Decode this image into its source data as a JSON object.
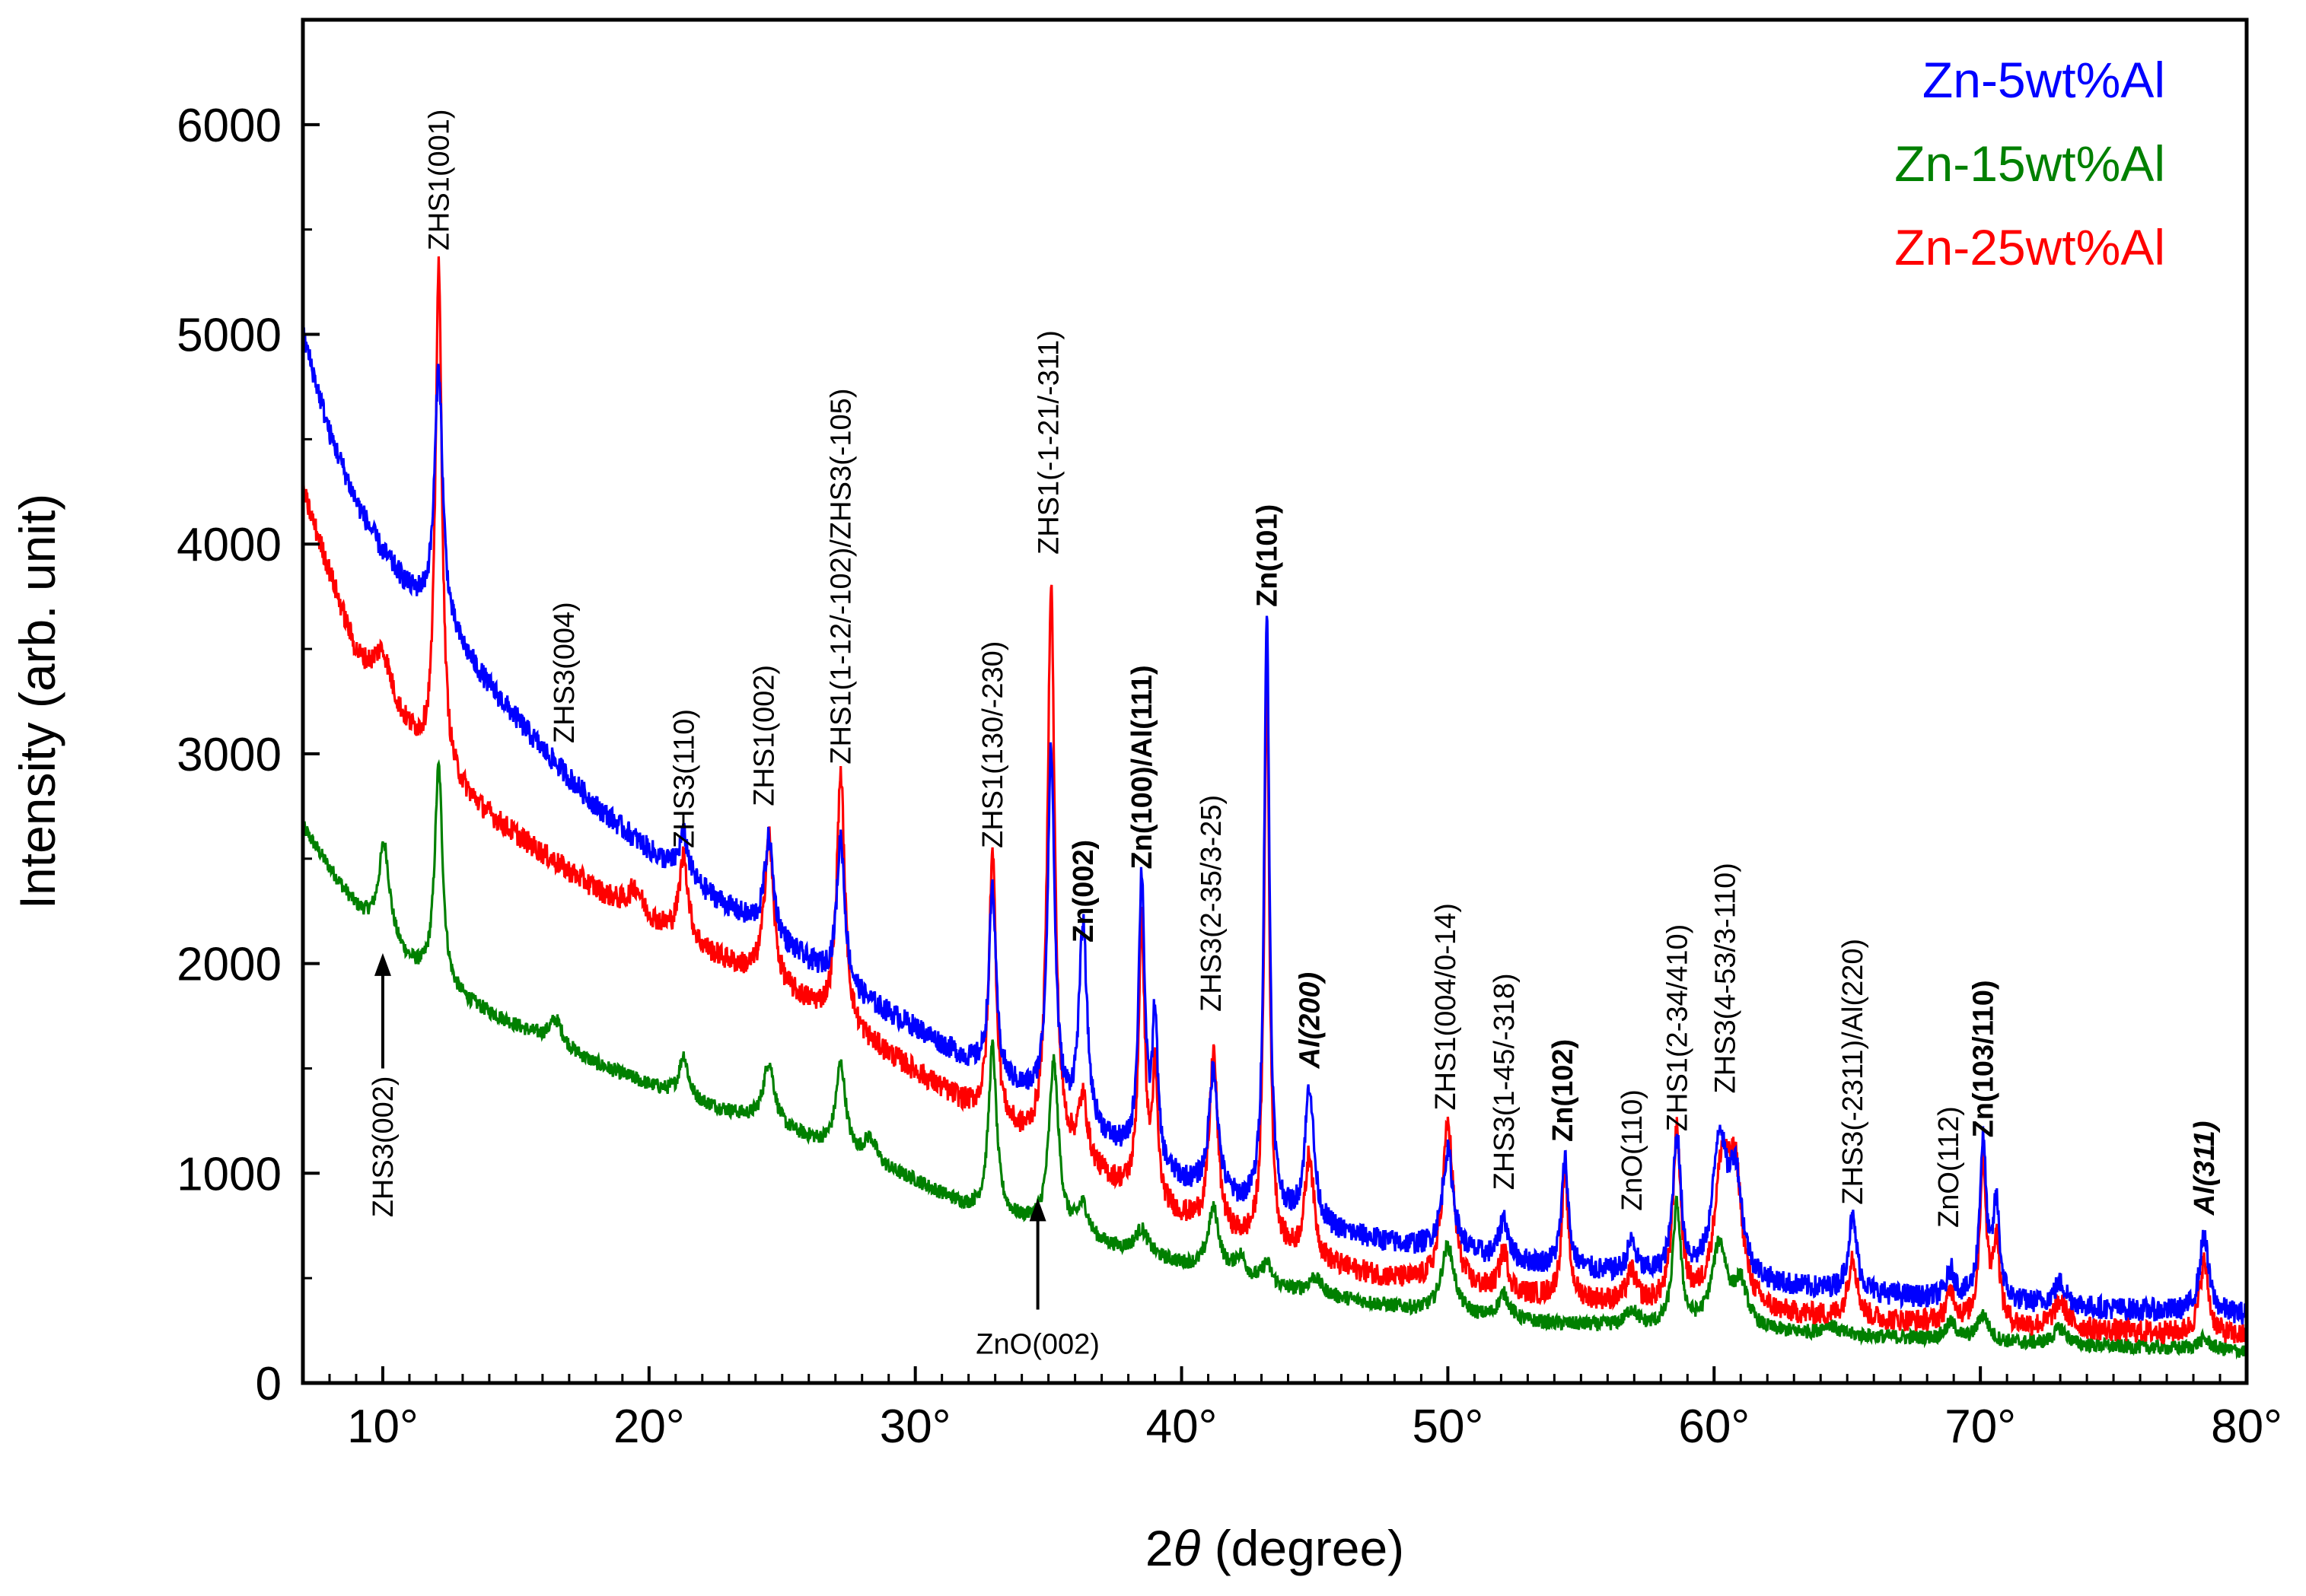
{
  "chart_data": {
    "type": "line",
    "title": "",
    "xlabel": "2θ (degree)",
    "ylabel": "Intensity (arb. unit)",
    "xlim": [
      7,
      80
    ],
    "ylim": [
      0,
      6500
    ],
    "x_ticks": [
      {
        "value": 10,
        "label": "10°"
      },
      {
        "value": 20,
        "label": "20°"
      },
      {
        "value": 30,
        "label": "30°"
      },
      {
        "value": 40,
        "label": "40°"
      },
      {
        "value": 50,
        "label": "50°"
      },
      {
        "value": 60,
        "label": "60°"
      },
      {
        "value": 70,
        "label": "70°"
      },
      {
        "value": 80,
        "label": "80°"
      }
    ],
    "y_ticks": [
      {
        "value": 0,
        "label": "0"
      },
      {
        "value": 1000,
        "label": "1000"
      },
      {
        "value": 2000,
        "label": "2000"
      },
      {
        "value": 3000,
        "label": "3000"
      },
      {
        "value": 4000,
        "label": "4000"
      },
      {
        "value": 5000,
        "label": "5000"
      },
      {
        "value": 6000,
        "label": "6000"
      }
    ],
    "legend": {
      "position": "top-right",
      "entries": [
        {
          "name": "Zn-5wt%Al",
          "color": "#0000ff"
        },
        {
          "name": "Zn-15wt%Al",
          "color": "#008000"
        },
        {
          "name": "Zn-25wt%Al",
          "color": "#ff0000"
        }
      ]
    },
    "series": [
      {
        "name": "Zn-15wt%Al",
        "color": "#008000",
        "baseline": [
          [
            7,
            2650
          ],
          [
            8,
            2450
          ],
          [
            9,
            2260
          ],
          [
            10,
            2120
          ],
          [
            11,
            1990
          ],
          [
            12,
            1890
          ],
          [
            14,
            1760
          ],
          [
            16,
            1640
          ],
          [
            18,
            1520
          ],
          [
            20,
            1420
          ],
          [
            22,
            1330
          ],
          [
            24,
            1250
          ],
          [
            26,
            1160
          ],
          [
            28,
            1050
          ],
          [
            30,
            960
          ],
          [
            32,
            830
          ],
          [
            34,
            760
          ],
          [
            36,
            690
          ],
          [
            38,
            620
          ],
          [
            40,
            560
          ],
          [
            42,
            500
          ],
          [
            44,
            440
          ],
          [
            46,
            400
          ],
          [
            48,
            360
          ],
          [
            50,
            320
          ],
          [
            52,
            300
          ],
          [
            54,
            280
          ],
          [
            56,
            270
          ],
          [
            58,
            260
          ],
          [
            60,
            250
          ],
          [
            62,
            240
          ],
          [
            64,
            230
          ],
          [
            66,
            220
          ],
          [
            68,
            210
          ],
          [
            70,
            195
          ],
          [
            72,
            185
          ],
          [
            74,
            175
          ],
          [
            76,
            170
          ],
          [
            78,
            160
          ],
          [
            80,
            150
          ]
        ],
        "peaks": [
          [
            10.05,
            450,
            0.25
          ],
          [
            12.1,
            1050,
            0.18
          ],
          [
            16.5,
            120,
            0.3
          ],
          [
            21.3,
            200,
            0.2
          ],
          [
            24.5,
            300,
            0.25
          ],
          [
            27.2,
            420,
            0.22
          ],
          [
            28.3,
            120,
            0.3
          ],
          [
            32.9,
            800,
            0.18
          ],
          [
            35.2,
            800,
            0.22
          ],
          [
            36.3,
            150,
            0.25
          ],
          [
            38.5,
            120,
            0.3
          ],
          [
            41.2,
            300,
            0.25
          ],
          [
            42.2,
            100,
            0.25
          ],
          [
            43.2,
            100,
            0.2
          ],
          [
            45.0,
            80,
            0.3
          ],
          [
            50.0,
            330,
            0.3
          ],
          [
            52.1,
            120,
            0.25
          ],
          [
            56.9,
            80,
            0.25
          ],
          [
            58.6,
            580,
            0.18
          ],
          [
            60.2,
            400,
            0.35
          ],
          [
            61.0,
            200,
            0.3
          ],
          [
            64.3,
            50,
            0.3
          ],
          [
            68.9,
            80,
            0.25
          ],
          [
            70.1,
            130,
            0.25
          ],
          [
            73.0,
            80,
            0.3
          ],
          [
            78.4,
            50,
            0.3
          ]
        ],
        "noise": 35
      },
      {
        "name": "Zn-25wt%Al",
        "color": "#ff0000",
        "baseline": [
          [
            7,
            4250
          ],
          [
            8,
            3860
          ],
          [
            9,
            3460
          ],
          [
            10,
            3250
          ],
          [
            11,
            3080
          ],
          [
            12,
            2920
          ],
          [
            14,
            2700
          ],
          [
            16,
            2520
          ],
          [
            18,
            2350
          ],
          [
            20,
            2200
          ],
          [
            22,
            2060
          ],
          [
            24,
            1940
          ],
          [
            26,
            1800
          ],
          [
            28,
            1640
          ],
          [
            30,
            1480
          ],
          [
            32,
            1310
          ],
          [
            34,
            1160
          ],
          [
            36,
            1050
          ],
          [
            38,
            900
          ],
          [
            40,
            780
          ],
          [
            42,
            680
          ],
          [
            44,
            600
          ],
          [
            46,
            540
          ],
          [
            48,
            490
          ],
          [
            50,
            450
          ],
          [
            52,
            420
          ],
          [
            54,
            400
          ],
          [
            56,
            380
          ],
          [
            58,
            360
          ],
          [
            60,
            340
          ],
          [
            62,
            320
          ],
          [
            64,
            310
          ],
          [
            66,
            295
          ],
          [
            68,
            285
          ],
          [
            70,
            270
          ],
          [
            72,
            260
          ],
          [
            74,
            250
          ],
          [
            76,
            240
          ],
          [
            78,
            230
          ],
          [
            80,
            220
          ]
        ],
        "peaks": [
          [
            10.0,
            230,
            0.4
          ],
          [
            12.1,
            2400,
            0.15
          ],
          [
            19.5,
            120,
            0.3
          ],
          [
            21.3,
            400,
            0.2
          ],
          [
            24.5,
            700,
            0.2
          ],
          [
            27.2,
            1200,
            0.18
          ],
          [
            32.9,
            1300,
            0.15
          ],
          [
            35.1,
            2700,
            0.16
          ],
          [
            36.3,
            300,
            0.2
          ],
          [
            38.5,
            1300,
            0.14
          ],
          [
            39.0,
            600,
            0.12
          ],
          [
            41.2,
            850,
            0.18
          ],
          [
            43.2,
            2700,
            0.12
          ],
          [
            44.8,
            500,
            0.2
          ],
          [
            50.0,
            780,
            0.25
          ],
          [
            52.1,
            200,
            0.2
          ],
          [
            54.4,
            600,
            0.15
          ],
          [
            56.9,
            150,
            0.2
          ],
          [
            58.6,
            820,
            0.18
          ],
          [
            60.3,
            640,
            0.35
          ],
          [
            60.8,
            560,
            0.3
          ],
          [
            65.2,
            300,
            0.2
          ],
          [
            68.9,
            150,
            0.2
          ],
          [
            70.1,
            780,
            0.15
          ],
          [
            70.6,
            400,
            0.15
          ],
          [
            73.0,
            130,
            0.3
          ],
          [
            78.4,
            350,
            0.2
          ]
        ],
        "noise": 55
      },
      {
        "name": "Zn-5wt%Al",
        "color": "#0000ff",
        "baseline": [
          [
            7,
            5000
          ],
          [
            8,
            4530
          ],
          [
            9,
            4200
          ],
          [
            10,
            3960
          ],
          [
            11,
            3780
          ],
          [
            12,
            3660
          ],
          [
            14,
            3320
          ],
          [
            16,
            3020
          ],
          [
            18,
            2750
          ],
          [
            20,
            2540
          ],
          [
            22,
            2350
          ],
          [
            24,
            2180
          ],
          [
            26,
            2000
          ],
          [
            28,
            1830
          ],
          [
            30,
            1690
          ],
          [
            32,
            1530
          ],
          [
            34,
            1380
          ],
          [
            36,
            1230
          ],
          [
            38,
            1080
          ],
          [
            40,
            950
          ],
          [
            42,
            850
          ],
          [
            44,
            770
          ],
          [
            46,
            710
          ],
          [
            48,
            660
          ],
          [
            50,
            620
          ],
          [
            52,
            580
          ],
          [
            54,
            550
          ],
          [
            56,
            520
          ],
          [
            58,
            500
          ],
          [
            60,
            480
          ],
          [
            62,
            460
          ],
          [
            64,
            440
          ],
          [
            66,
            420
          ],
          [
            68,
            400
          ],
          [
            70,
            385
          ],
          [
            72,
            370
          ],
          [
            74,
            355
          ],
          [
            76,
            345
          ],
          [
            78,
            335
          ],
          [
            80,
            325
          ]
        ],
        "peaks": [
          [
            12.1,
            1200,
            0.18
          ],
          [
            21.3,
            200,
            0.2
          ],
          [
            24.5,
            460,
            0.2
          ],
          [
            27.2,
            700,
            0.18
          ],
          [
            32.9,
            900,
            0.15
          ],
          [
            35.1,
            1700,
            0.16
          ],
          [
            36.3,
            950,
            0.18
          ],
          [
            38.5,
            1350,
            0.14
          ],
          [
            39.0,
            700,
            0.12
          ],
          [
            41.2,
            600,
            0.2
          ],
          [
            43.2,
            2850,
            0.12
          ],
          [
            44.8,
            660,
            0.2
          ],
          [
            50.0,
            480,
            0.25
          ],
          [
            52.1,
            200,
            0.2
          ],
          [
            54.4,
            520,
            0.15
          ],
          [
            56.9,
            150,
            0.2
          ],
          [
            58.6,
            670,
            0.18
          ],
          [
            60.2,
            650,
            0.3
          ],
          [
            60.8,
            480,
            0.3
          ],
          [
            65.2,
            350,
            0.2
          ],
          [
            68.9,
            130,
            0.2
          ],
          [
            70.1,
            750,
            0.15
          ],
          [
            70.6,
            450,
            0.15
          ],
          [
            73.0,
            110,
            0.3
          ],
          [
            78.4,
            370,
            0.2
          ]
        ],
        "noise": 55
      }
    ],
    "peak_labels": [
      {
        "text": "ZHS1(001)",
        "x": 12.1,
        "y": 5400,
        "bold": false
      },
      {
        "text": "ZHS3(004)",
        "x": 16.8,
        "y": 3050,
        "bold": false
      },
      {
        "text": "ZHS3(110)",
        "x": 21.3,
        "y": 2550,
        "bold": false
      },
      {
        "text": "ZHS1(002)",
        "x": 24.3,
        "y": 2750,
        "bold": false
      },
      {
        "text": "ZHS1(1-12/-102)/ZHS3(-105)",
        "x": 27.2,
        "y": 2950,
        "bold": false
      },
      {
        "text": "ZHS1(130/-230)",
        "x": 32.9,
        "y": 2550,
        "bold": false
      },
      {
        "text": "ZHS1(-1-21/-311)",
        "x": 35.0,
        "y": 3950,
        "bold": false
      },
      {
        "text": "Zn(002)",
        "x": 36.3,
        "y": 2100,
        "bold": true,
        "italic": false
      },
      {
        "text": "Zn(100)/Al(111)",
        "x": 38.5,
        "y": 2450,
        "bold": true,
        "italic": false
      },
      {
        "text": "ZHS3(2-35/3-25)",
        "x": 41.1,
        "y": 1770,
        "bold": false
      },
      {
        "text": "Zn(101)",
        "x": 43.2,
        "y": 3700,
        "bold": true,
        "italic": false
      },
      {
        "text": "Al(200)",
        "x": 44.8,
        "y": 1500,
        "bold": true,
        "italic": true
      },
      {
        "text": "ZHS1(004/0-14)",
        "x": 49.9,
        "y": 1300,
        "bold": false
      },
      {
        "text": "ZHS3(1-45/-318)",
        "x": 52.1,
        "y": 920,
        "bold": false
      },
      {
        "text": "Zn(102)",
        "x": 54.3,
        "y": 1150,
        "bold": true,
        "italic": false
      },
      {
        "text": "ZnO(110)",
        "x": 56.9,
        "y": 820,
        "bold": false
      },
      {
        "text": "ZHS1(2-34/410)",
        "x": 58.6,
        "y": 1200,
        "bold": false
      },
      {
        "text": "ZHS3(4-53/3-110)",
        "x": 60.4,
        "y": 1380,
        "bold": false
      },
      {
        "text": "ZHS3(-2311)/Al(220)",
        "x": 65.2,
        "y": 850,
        "bold": false
      },
      {
        "text": "ZnO(112)",
        "x": 68.8,
        "y": 740,
        "bold": false
      },
      {
        "text": "Zn(103/110)",
        "x": 70.1,
        "y": 1170,
        "bold": true,
        "italic": false
      },
      {
        "text": "Al(311)",
        "x": 78.4,
        "y": 800,
        "bold": true,
        "italic": true
      }
    ],
    "arrow_labels": [
      {
        "text": "ZHS3(002)",
        "x": 10.0,
        "y_tip": 2050,
        "y_tail": 1500
      },
      {
        "text": "ZnO(002)",
        "x": 34.6,
        "y_tip": 880,
        "y_tail": 350
      }
    ]
  }
}
